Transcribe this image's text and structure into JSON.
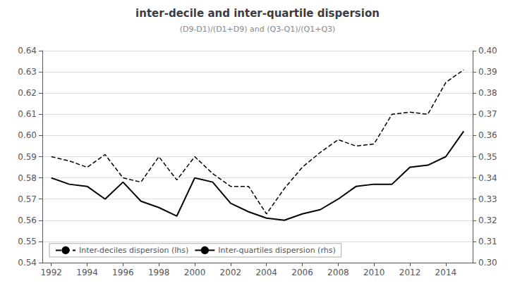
{
  "chart_data": {
    "type": "line",
    "title": "inter-decile and inter-quartile dispersion",
    "subtitle": "(D9-D1)/(D1+D9) and (Q3-Q1)/(Q1+Q3)",
    "x": [
      1992,
      1993,
      1994,
      1995,
      1996,
      1997,
      1998,
      1999,
      2000,
      2001,
      2002,
      2003,
      2004,
      2005,
      2006,
      2007,
      2008,
      2009,
      2010,
      2011,
      2012,
      2013,
      2014,
      2015
    ],
    "series": [
      {
        "name": "Inter-deciles dispersion (lhs)",
        "color": "#000000",
        "line_style": "dashed",
        "values": [
          0.59,
          0.588,
          0.585,
          0.591,
          0.58,
          0.578,
          0.59,
          0.579,
          0.59,
          0.582,
          0.576,
          0.576,
          0.563,
          0.575,
          0.585,
          0.592,
          0.598,
          0.595,
          0.596,
          0.61,
          0.611,
          0.61,
          0.625,
          0.631
        ]
      },
      {
        "name": "Inter-quartiles dispersion (rhs)",
        "color": "#000000",
        "line_style": "solid",
        "axis": "y2",
        "values": [
          0.34,
          0.337,
          0.336,
          0.33,
          0.338,
          0.329,
          0.326,
          0.322,
          0.34,
          0.338,
          0.328,
          0.324,
          0.321,
          0.32,
          0.323,
          0.325,
          0.33,
          0.336,
          0.337,
          0.337,
          0.345,
          0.346,
          0.35,
          0.362
        ]
      }
    ],
    "xlim": [
      1991.5,
      2015.5
    ],
    "xticks": [
      1992,
      1994,
      1996,
      1998,
      2000,
      2002,
      2004,
      2006,
      2008,
      2010,
      2012,
      2014
    ],
    "ylim": [
      0.54,
      0.64
    ],
    "yticks": [
      0.54,
      0.55,
      0.56,
      0.57,
      0.58,
      0.59,
      {
        "value": 0.6,
        "label": "0.60"
      },
      0.61,
      0.62,
      0.63,
      0.64
    ],
    "y2lim": [
      0.3,
      0.4
    ],
    "y2ticks": [
      {
        "value": 0.3,
        "label": "0.30"
      },
      0.31,
      0.32,
      0.33,
      0.34,
      0.35,
      0.36,
      0.37,
      0.38,
      0.39,
      {
        "value": 0.4,
        "label": "0.40"
      }
    ],
    "grid": true,
    "legend": "lower left"
  }
}
